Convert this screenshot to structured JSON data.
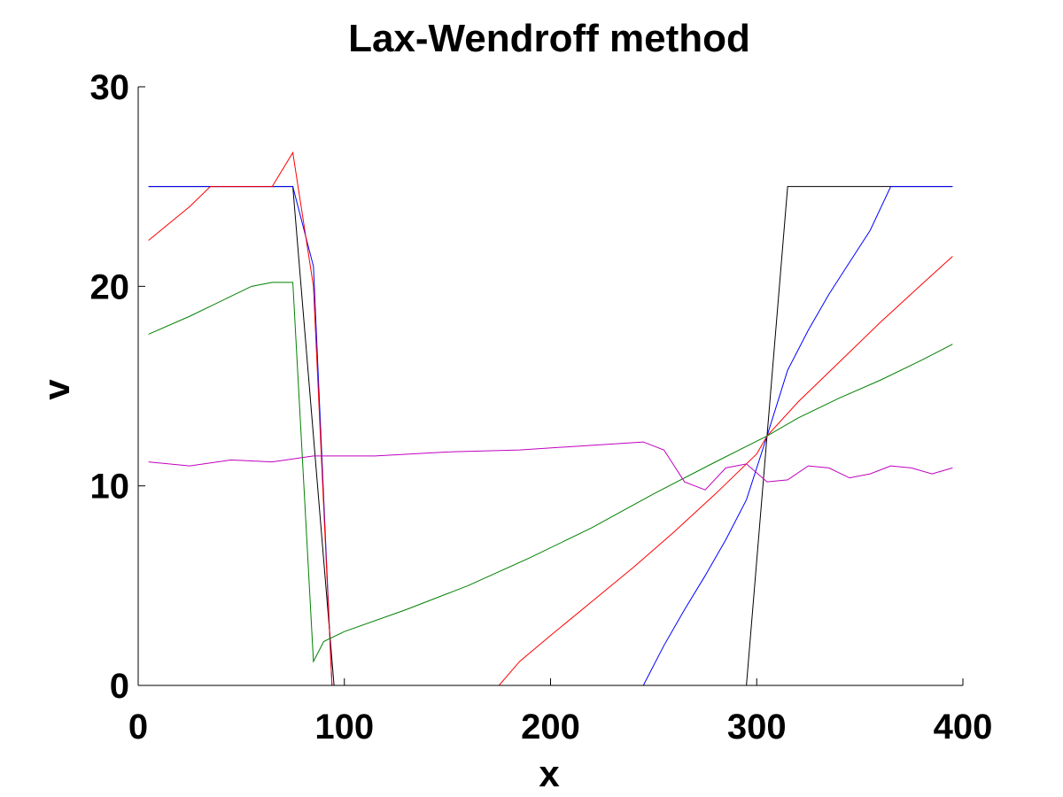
{
  "chart_data": {
    "type": "line",
    "title": "Lax-Wendroff method",
    "xlabel": "x",
    "ylabel": "v",
    "xlim": [
      0,
      400
    ],
    "ylim": [
      0,
      30
    ],
    "xticks": [
      0,
      100,
      200,
      300,
      400
    ],
    "yticks": [
      0,
      10,
      20,
      30
    ],
    "grid": false,
    "series": [
      {
        "color": "#000000",
        "x": [
          5,
          75,
          95,
          295,
          315,
          395
        ],
        "y": [
          25,
          25,
          0,
          0,
          25,
          25
        ]
      },
      {
        "color": "#0000ff",
        "x": [
          5,
          35,
          75,
          85,
          94,
          245,
          255,
          265,
          275,
          285,
          295,
          305,
          315,
          325,
          335,
          345,
          355,
          365,
          395
        ],
        "y": [
          25,
          25,
          25,
          21,
          0,
          0,
          2,
          3.8,
          5.5,
          7.3,
          9.3,
          12.5,
          15.8,
          17.8,
          19.6,
          21.2,
          22.8,
          25,
          25
        ]
      },
      {
        "color": "#ff0000",
        "x": [
          5,
          25,
          35,
          45,
          55,
          65,
          75,
          85,
          94,
          115,
          175,
          185,
          200,
          220,
          240,
          260,
          280,
          300,
          305,
          320,
          340,
          360,
          380,
          395
        ],
        "y": [
          22.3,
          24,
          25,
          25,
          25,
          25,
          26.7,
          20,
          0,
          0,
          0,
          1.2,
          2.5,
          4.2,
          5.9,
          7.7,
          9.6,
          11.6,
          12.5,
          14.2,
          16.2,
          18.2,
          20.1,
          21.5
        ]
      },
      {
        "color": "#008000",
        "x": [
          5,
          25,
          45,
          55,
          65,
          75,
          85,
          90,
          100,
          130,
          160,
          190,
          220,
          250,
          280,
          305,
          320,
          340,
          360,
          380,
          395
        ],
        "y": [
          17.6,
          18.5,
          19.5,
          20,
          20.2,
          20.2,
          1.2,
          2.2,
          2.7,
          3.8,
          5,
          6.4,
          7.9,
          9.6,
          11.2,
          12.5,
          13.4,
          14.4,
          15.3,
          16.3,
          17.1
        ]
      },
      {
        "color": "#bf00bf",
        "x": [
          5,
          25,
          45,
          65,
          85,
          115,
          150,
          185,
          215,
          245,
          255,
          265,
          275,
          285,
          295,
          305,
          315,
          325,
          335,
          345,
          355,
          365,
          375,
          385,
          395
        ],
        "y": [
          11.2,
          11,
          11.3,
          11.2,
          11.5,
          11.5,
          11.7,
          11.8,
          12,
          12.2,
          11.8,
          10.2,
          9.8,
          10.9,
          11.1,
          10.2,
          10.3,
          11,
          10.9,
          10.4,
          10.6,
          11,
          10.9,
          10.6,
          10.9
        ]
      }
    ]
  }
}
